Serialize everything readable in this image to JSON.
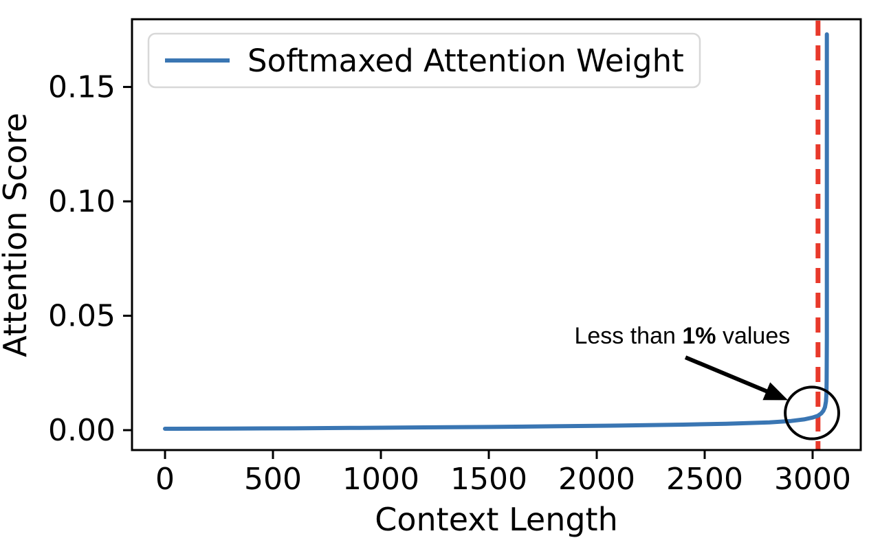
{
  "figure": {
    "background_color": "#ffffff",
    "text_color": "#000000"
  },
  "chart_data": {
    "type": "line",
    "title": "",
    "xlabel": "Context Length",
    "ylabel": "Attention Score",
    "xlim": [
      -153,
      3223
    ],
    "ylim": [
      -0.0087,
      0.1796
    ],
    "grid": false,
    "xticks": {
      "values": [
        0,
        500,
        1000,
        1500,
        2000,
        2500,
        3000
      ],
      "labels": [
        "0",
        "500",
        "1000",
        "1500",
        "2000",
        "2500",
        "3000"
      ]
    },
    "yticks": {
      "values": [
        0,
        0.05,
        0.1,
        0.15
      ],
      "labels": [
        "0.00",
        "0.05",
        "0.10",
        "0.15"
      ]
    },
    "series": [
      {
        "name": "Softmaxed Attention Weight",
        "color": "#3a76b3",
        "points": [
          [
            0,
            0.0006
          ],
          [
            300,
            0.0007
          ],
          [
            600,
            0.0008
          ],
          [
            900,
            0.001
          ],
          [
            1200,
            0.0012
          ],
          [
            1500,
            0.0014
          ],
          [
            1800,
            0.0017
          ],
          [
            2100,
            0.002
          ],
          [
            2400,
            0.0024
          ],
          [
            2600,
            0.0028
          ],
          [
            2800,
            0.0034
          ],
          [
            2900,
            0.004
          ],
          [
            2960,
            0.0047
          ],
          [
            3000,
            0.0055
          ],
          [
            3025,
            0.0063
          ],
          [
            3040,
            0.0073
          ],
          [
            3050,
            0.0085
          ],
          [
            3057,
            0.01
          ],
          [
            3062,
            0.0125
          ],
          [
            3064,
            0.016
          ],
          [
            3065,
            0.022
          ],
          [
            3066,
            0.04
          ],
          [
            3066,
            0.08
          ],
          [
            3066,
            0.12
          ],
          [
            3066,
            0.173
          ]
        ]
      }
    ],
    "vline": {
      "x": 3025,
      "color": "#e8392b",
      "style": "dashed"
    },
    "legend": {
      "position": "upper left",
      "entries": [
        {
          "label": "Softmaxed Attention Weight",
          "color": "#3a76b3"
        }
      ]
    },
    "annotation": {
      "text_prefix": "Less than ",
      "text_bold": "1%",
      "text_suffix": " values",
      "color": "#000000",
      "text_pos": {
        "x": 2366,
        "y": 0.0379
      },
      "arrow": {
        "from": {
          "x": 2411,
          "y": 0.0318
        },
        "to": {
          "x": 2886,
          "y": 0.0131
        }
      },
      "ellipse": {
        "cx": 2997,
        "cy": 0.0075,
        "rx": 124,
        "ry": 0.0113
      }
    }
  }
}
